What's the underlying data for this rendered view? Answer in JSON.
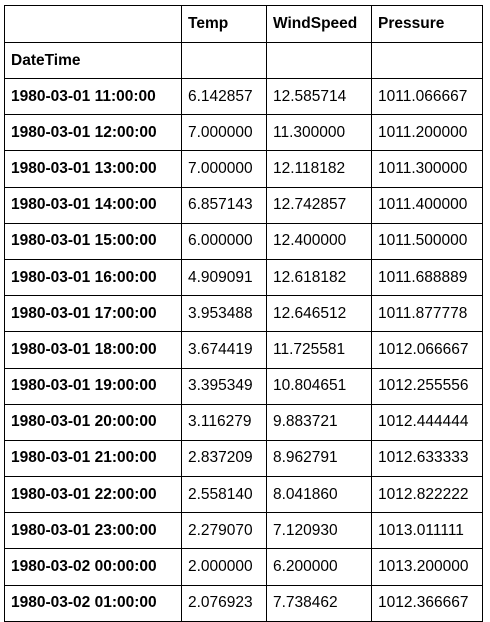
{
  "table": {
    "columns": [
      "",
      "Temp",
      "WindSpeed",
      "Pressure"
    ],
    "index_name": "DateTime",
    "rows": [
      {
        "datetime": "1980-03-01 11:00:00",
        "temp": "6.142857",
        "windspeed": "12.585714",
        "pressure": "1011.066667"
      },
      {
        "datetime": "1980-03-01 12:00:00",
        "temp": "7.000000",
        "windspeed": "11.300000",
        "pressure": "1011.200000"
      },
      {
        "datetime": "1980-03-01 13:00:00",
        "temp": "7.000000",
        "windspeed": "12.118182",
        "pressure": "1011.300000"
      },
      {
        "datetime": "1980-03-01 14:00:00",
        "temp": "6.857143",
        "windspeed": "12.742857",
        "pressure": "1011.400000"
      },
      {
        "datetime": "1980-03-01 15:00:00",
        "temp": "6.000000",
        "windspeed": "12.400000",
        "pressure": "1011.500000"
      },
      {
        "datetime": "1980-03-01 16:00:00",
        "temp": "4.909091",
        "windspeed": "12.618182",
        "pressure": "1011.688889"
      },
      {
        "datetime": "1980-03-01 17:00:00",
        "temp": "3.953488",
        "windspeed": "12.646512",
        "pressure": "1011.877778"
      },
      {
        "datetime": "1980-03-01 18:00:00",
        "temp": "3.674419",
        "windspeed": "11.725581",
        "pressure": "1012.066667"
      },
      {
        "datetime": "1980-03-01 19:00:00",
        "temp": "3.395349",
        "windspeed": "10.804651",
        "pressure": "1012.255556"
      },
      {
        "datetime": "1980-03-01 20:00:00",
        "temp": "3.116279",
        "windspeed": "9.883721",
        "pressure": "1012.444444"
      },
      {
        "datetime": "1980-03-01 21:00:00",
        "temp": "2.837209",
        "windspeed": "8.962791",
        "pressure": "1012.633333"
      },
      {
        "datetime": "1980-03-01 22:00:00",
        "temp": "2.558140",
        "windspeed": "8.041860",
        "pressure": "1012.822222"
      },
      {
        "datetime": "1980-03-01 23:00:00",
        "temp": "2.279070",
        "windspeed": "7.120930",
        "pressure": "1013.011111"
      },
      {
        "datetime": "1980-03-02 00:00:00",
        "temp": "2.000000",
        "windspeed": "6.200000",
        "pressure": "1013.200000"
      },
      {
        "datetime": "1980-03-02 01:00:00",
        "temp": "2.076923",
        "windspeed": "7.738462",
        "pressure": "1012.366667"
      }
    ]
  }
}
